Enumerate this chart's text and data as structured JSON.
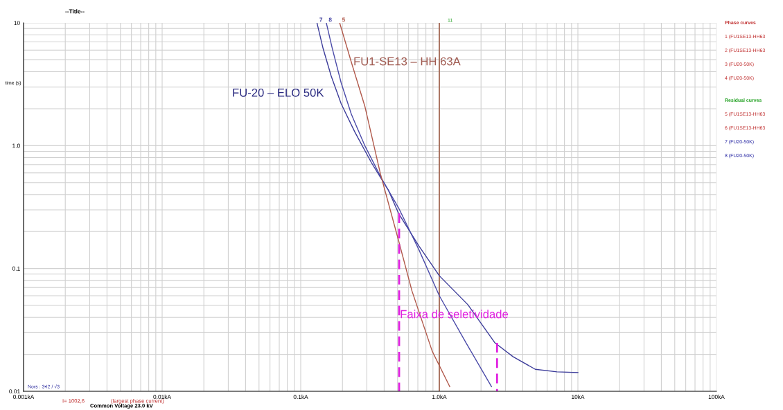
{
  "chart_data": {
    "type": "line",
    "title": "--Title--",
    "ylabel": "time (s)",
    "log": "xy",
    "grid": true,
    "marker": "none",
    "line_style": "solid",
    "xlim": [
      0.001,
      100
    ],
    "ylim": [
      0.01,
      10
    ],
    "xticks": [
      {
        "value": 0.001,
        "label": "0.001kA"
      },
      {
        "value": 0.01,
        "label": "0.01kA"
      },
      {
        "value": 0.1,
        "label": "0.1kA"
      },
      {
        "value": 1,
        "label": "1.0kA"
      },
      {
        "value": 10,
        "label": "10kA"
      },
      {
        "value": 100,
        "label": "100kA"
      }
    ],
    "yticks": [
      {
        "value": 0.01,
        "label": "0.01"
      },
      {
        "value": 0.1,
        "label": "0.1"
      },
      {
        "value": 1,
        "label": "1.0"
      },
      {
        "value": 10,
        "label": "10"
      }
    ],
    "series": [
      {
        "name": "7",
        "color": "#3c3c9a",
        "x": [
          0.131,
          0.145,
          0.166,
          0.196,
          0.245,
          0.324,
          0.43,
          0.508,
          0.711,
          1.0,
          1.61,
          2.52,
          3.41,
          4.93,
          7.06,
          10
        ],
        "values": [
          10,
          6.18,
          3.68,
          2.19,
          1.3,
          0.726,
          0.432,
          0.281,
          0.153,
          0.0873,
          0.0506,
          0.0248,
          0.0191,
          0.0151,
          0.0144,
          0.0142
        ]
      },
      {
        "name": "8",
        "color": "#4a4aa8",
        "x": [
          0.153,
          0.169,
          0.196,
          0.232,
          0.29,
          0.384,
          0.508,
          0.711,
          1.0,
          1.56,
          2.38
        ],
        "values": [
          10,
          6.18,
          3.23,
          1.8,
          1.0,
          0.538,
          0.312,
          0.143,
          0.06,
          0.0248,
          0.0109
        ]
      },
      {
        "name": "5",
        "color": "#b0584a",
        "x": [
          0.191,
          0.232,
          0.29,
          0.375,
          0.508,
          0.635,
          0.889,
          1.19
        ],
        "values": [
          10,
          4.77,
          2.1,
          0.597,
          0.169,
          0.0656,
          0.0212,
          0.0109
        ]
      },
      {
        "color": "#e020e0",
        "line_style": "dashed",
        "x": [
          0.513,
          0.513
        ],
        "values": [
          0.281,
          0.01
        ]
      },
      {
        "color": "#e020e0",
        "line_style": "dashed",
        "x": [
          2.61,
          2.61
        ],
        "values": [
          0.0248,
          0.01
        ]
      }
    ],
    "ref_lines": [
      {
        "axis": "x",
        "value": 1.0,
        "color": "#a0604a"
      }
    ],
    "annotations": [
      "FU-20 – ELO 50K",
      "11",
      {
        "text": "FU1-SE13 – HH 63A",
        "x": 0.24,
        "y": 4.77
      },
      {
        "text": "Faixa de seletividade",
        "x": 0.52,
        "y": 0.0417
      },
      "Nors : 3•I2 / √3",
      "I= 1002,6",
      "(largest phase current)",
      "Common Voltage 23.0 kV",
      "Phase curves",
      "1 (FU1SE13-HH63",
      "2 (FU1SE13-HH63",
      "3 (FU20-50K)",
      "4 (FU20-50K)",
      "Residual curves",
      "5 (FU1SE13-HH63",
      "6 (FU1SE13-HH63",
      "7 (FU20-50K)",
      "8 (FU20-50K)"
    ]
  }
}
